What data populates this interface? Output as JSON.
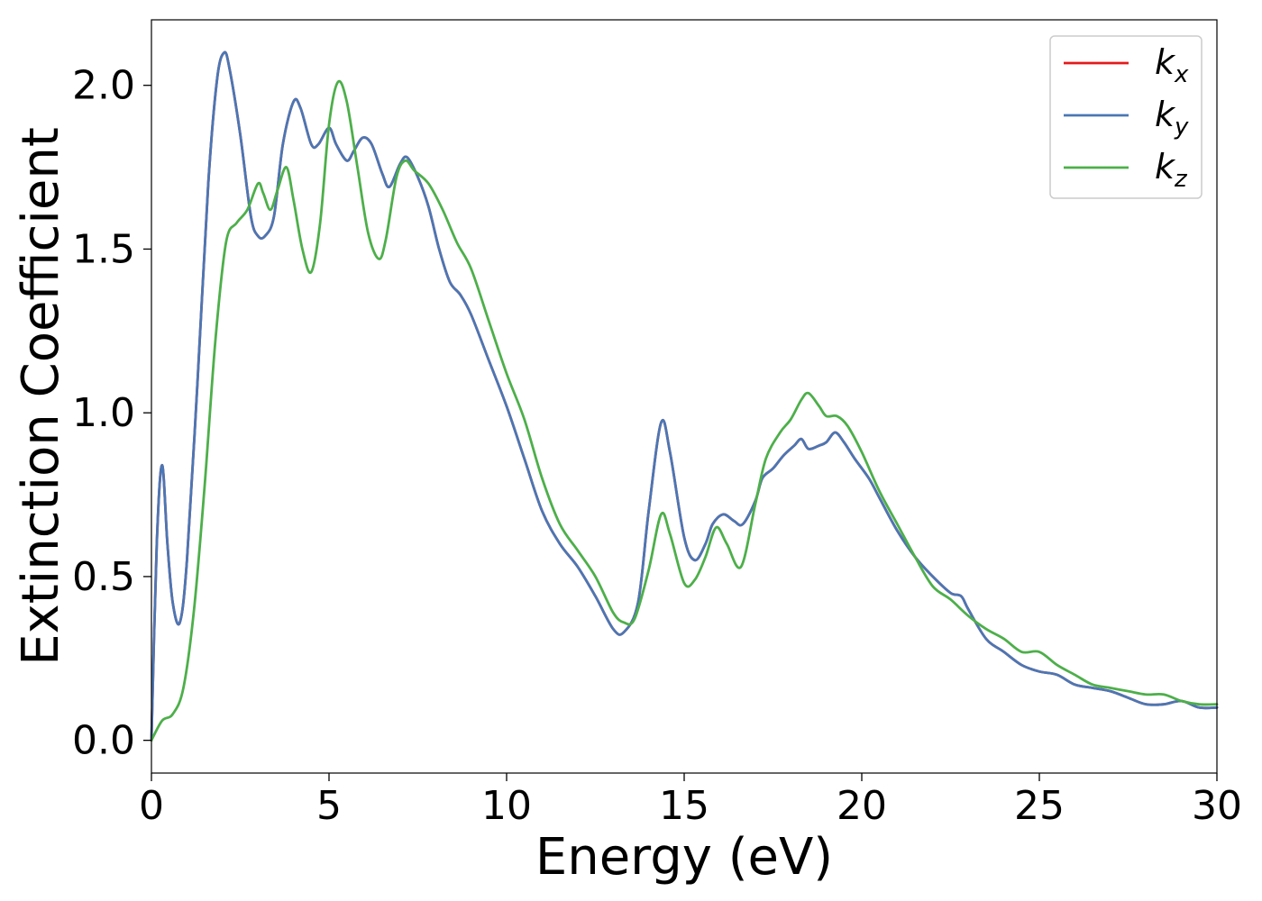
{
  "chart_data": {
    "type": "line",
    "xlabel": "Energy (eV)",
    "ylabel": "Extinction Coefficient",
    "xlim": [
      0,
      30
    ],
    "ylim": [
      -0.1,
      2.2
    ],
    "xticks": [
      0,
      5,
      10,
      15,
      20,
      25,
      30
    ],
    "xtick_labels": [
      "0",
      "5",
      "10",
      "15",
      "20",
      "25",
      "30"
    ],
    "yticks": [
      0.0,
      0.5,
      1.0,
      1.5,
      2.0
    ],
    "ytick_labels": [
      "0.0",
      "0.5",
      "1.0",
      "1.5",
      "2.0"
    ],
    "grid": false,
    "legend_position": "top-right",
    "series": [
      {
        "name": "k_x",
        "label_base": "k",
        "label_sub": "x",
        "color": "#e41a1c",
        "x": [
          0,
          0.15,
          0.3,
          0.45,
          0.6,
          0.8,
          1.0,
          1.3,
          1.6,
          1.85,
          2.05,
          2.2,
          2.5,
          2.8,
          3.0,
          3.2,
          3.45,
          3.7,
          4.0,
          4.2,
          4.5,
          4.7,
          5.0,
          5.2,
          5.5,
          5.7,
          5.95,
          6.2,
          6.5,
          6.7,
          7.0,
          7.2,
          7.5,
          7.8,
          8.1,
          8.4,
          8.7,
          9.0,
          9.5,
          10.0,
          10.5,
          11.0,
          11.5,
          12.0,
          12.5,
          13.0,
          13.3,
          13.7,
          14.0,
          14.35,
          14.6,
          15.0,
          15.3,
          15.6,
          15.8,
          16.1,
          16.4,
          16.65,
          17.0,
          17.2,
          17.5,
          17.8,
          18.1,
          18.3,
          18.5,
          18.8,
          19.0,
          19.25,
          19.5,
          19.8,
          20.2,
          20.5,
          21.0,
          21.5,
          22.0,
          22.5,
          22.8,
          23.0,
          23.5,
          24.0,
          24.5,
          25.0,
          25.5,
          26.0,
          26.5,
          27.0,
          27.5,
          28.0,
          28.5,
          29.0,
          29.5,
          30.0
        ],
        "y": [
          0.0,
          0.6,
          0.84,
          0.6,
          0.42,
          0.36,
          0.55,
          1.1,
          1.7,
          2.02,
          2.1,
          2.05,
          1.85,
          1.6,
          1.54,
          1.54,
          1.6,
          1.82,
          1.95,
          1.93,
          1.82,
          1.82,
          1.87,
          1.82,
          1.77,
          1.8,
          1.84,
          1.82,
          1.73,
          1.69,
          1.76,
          1.78,
          1.72,
          1.63,
          1.5,
          1.4,
          1.36,
          1.3,
          1.16,
          1.02,
          0.86,
          0.7,
          0.6,
          0.53,
          0.44,
          0.34,
          0.33,
          0.42,
          0.7,
          0.97,
          0.88,
          0.62,
          0.55,
          0.6,
          0.66,
          0.69,
          0.67,
          0.66,
          0.73,
          0.8,
          0.83,
          0.87,
          0.9,
          0.92,
          0.89,
          0.9,
          0.91,
          0.94,
          0.91,
          0.86,
          0.8,
          0.74,
          0.64,
          0.56,
          0.5,
          0.45,
          0.44,
          0.4,
          0.31,
          0.27,
          0.23,
          0.21,
          0.2,
          0.17,
          0.16,
          0.15,
          0.13,
          0.11,
          0.11,
          0.12,
          0.1,
          0.1
        ]
      },
      {
        "name": "k_y",
        "label_base": "k",
        "label_sub": "y",
        "color": "#4a77b5",
        "x": [
          0,
          0.15,
          0.3,
          0.45,
          0.6,
          0.8,
          1.0,
          1.3,
          1.6,
          1.85,
          2.05,
          2.2,
          2.5,
          2.8,
          3.0,
          3.2,
          3.45,
          3.7,
          4.0,
          4.2,
          4.5,
          4.7,
          5.0,
          5.2,
          5.5,
          5.7,
          5.95,
          6.2,
          6.5,
          6.7,
          7.0,
          7.2,
          7.5,
          7.8,
          8.1,
          8.4,
          8.7,
          9.0,
          9.5,
          10.0,
          10.5,
          11.0,
          11.5,
          12.0,
          12.5,
          13.0,
          13.3,
          13.7,
          14.0,
          14.35,
          14.6,
          15.0,
          15.3,
          15.6,
          15.8,
          16.1,
          16.4,
          16.65,
          17.0,
          17.2,
          17.5,
          17.8,
          18.1,
          18.3,
          18.5,
          18.8,
          19.0,
          19.25,
          19.5,
          19.8,
          20.2,
          20.5,
          21.0,
          21.5,
          22.0,
          22.5,
          22.8,
          23.0,
          23.5,
          24.0,
          24.5,
          25.0,
          25.5,
          26.0,
          26.5,
          27.0,
          27.5,
          28.0,
          28.5,
          29.0,
          29.5,
          30.0
        ],
        "y": [
          0.0,
          0.6,
          0.84,
          0.6,
          0.42,
          0.36,
          0.55,
          1.1,
          1.7,
          2.02,
          2.1,
          2.05,
          1.85,
          1.6,
          1.54,
          1.54,
          1.6,
          1.82,
          1.95,
          1.93,
          1.82,
          1.82,
          1.87,
          1.82,
          1.77,
          1.8,
          1.84,
          1.82,
          1.73,
          1.69,
          1.76,
          1.78,
          1.72,
          1.63,
          1.5,
          1.4,
          1.36,
          1.3,
          1.16,
          1.02,
          0.86,
          0.7,
          0.6,
          0.53,
          0.44,
          0.34,
          0.33,
          0.42,
          0.7,
          0.97,
          0.88,
          0.62,
          0.55,
          0.6,
          0.66,
          0.69,
          0.67,
          0.66,
          0.73,
          0.8,
          0.83,
          0.87,
          0.9,
          0.92,
          0.89,
          0.9,
          0.91,
          0.94,
          0.91,
          0.86,
          0.8,
          0.74,
          0.64,
          0.56,
          0.5,
          0.45,
          0.44,
          0.4,
          0.31,
          0.27,
          0.23,
          0.21,
          0.2,
          0.17,
          0.16,
          0.15,
          0.13,
          0.11,
          0.11,
          0.12,
          0.1,
          0.1
        ]
      },
      {
        "name": "k_z",
        "label_base": "k",
        "label_sub": "z",
        "color": "#4daf4a",
        "x": [
          0,
          0.3,
          0.6,
          0.9,
          1.2,
          1.5,
          1.8,
          2.1,
          2.4,
          2.7,
          3.0,
          3.15,
          3.35,
          3.55,
          3.8,
          4.0,
          4.25,
          4.5,
          4.75,
          5.0,
          5.25,
          5.5,
          5.8,
          6.1,
          6.4,
          6.6,
          6.9,
          7.15,
          7.4,
          7.8,
          8.2,
          8.6,
          9.0,
          9.5,
          10.0,
          10.5,
          11.0,
          11.5,
          12.0,
          12.5,
          13.0,
          13.3,
          13.6,
          14.0,
          14.35,
          14.6,
          15.0,
          15.3,
          15.6,
          15.9,
          16.2,
          16.6,
          17.0,
          17.3,
          17.7,
          18.0,
          18.3,
          18.5,
          18.8,
          19.0,
          19.3,
          19.6,
          20.0,
          20.5,
          21.0,
          21.5,
          22.0,
          22.5,
          23.0,
          23.5,
          24.0,
          24.5,
          25.0,
          25.5,
          26.0,
          26.5,
          27.0,
          27.5,
          28.0,
          28.5,
          29.0,
          29.5,
          30.0
        ],
        "y": [
          0.0,
          0.06,
          0.08,
          0.16,
          0.4,
          0.78,
          1.22,
          1.52,
          1.58,
          1.62,
          1.7,
          1.67,
          1.62,
          1.68,
          1.75,
          1.65,
          1.5,
          1.43,
          1.58,
          1.88,
          2.01,
          1.95,
          1.75,
          1.55,
          1.47,
          1.53,
          1.72,
          1.77,
          1.74,
          1.7,
          1.62,
          1.52,
          1.44,
          1.28,
          1.12,
          0.98,
          0.8,
          0.66,
          0.58,
          0.5,
          0.39,
          0.36,
          0.37,
          0.52,
          0.69,
          0.63,
          0.48,
          0.49,
          0.56,
          0.65,
          0.6,
          0.53,
          0.72,
          0.86,
          0.94,
          0.98,
          1.04,
          1.06,
          1.02,
          0.99,
          0.99,
          0.96,
          0.88,
          0.76,
          0.66,
          0.56,
          0.47,
          0.43,
          0.38,
          0.34,
          0.31,
          0.27,
          0.27,
          0.23,
          0.2,
          0.17,
          0.16,
          0.15,
          0.14,
          0.14,
          0.12,
          0.11,
          0.11
        ]
      }
    ]
  }
}
